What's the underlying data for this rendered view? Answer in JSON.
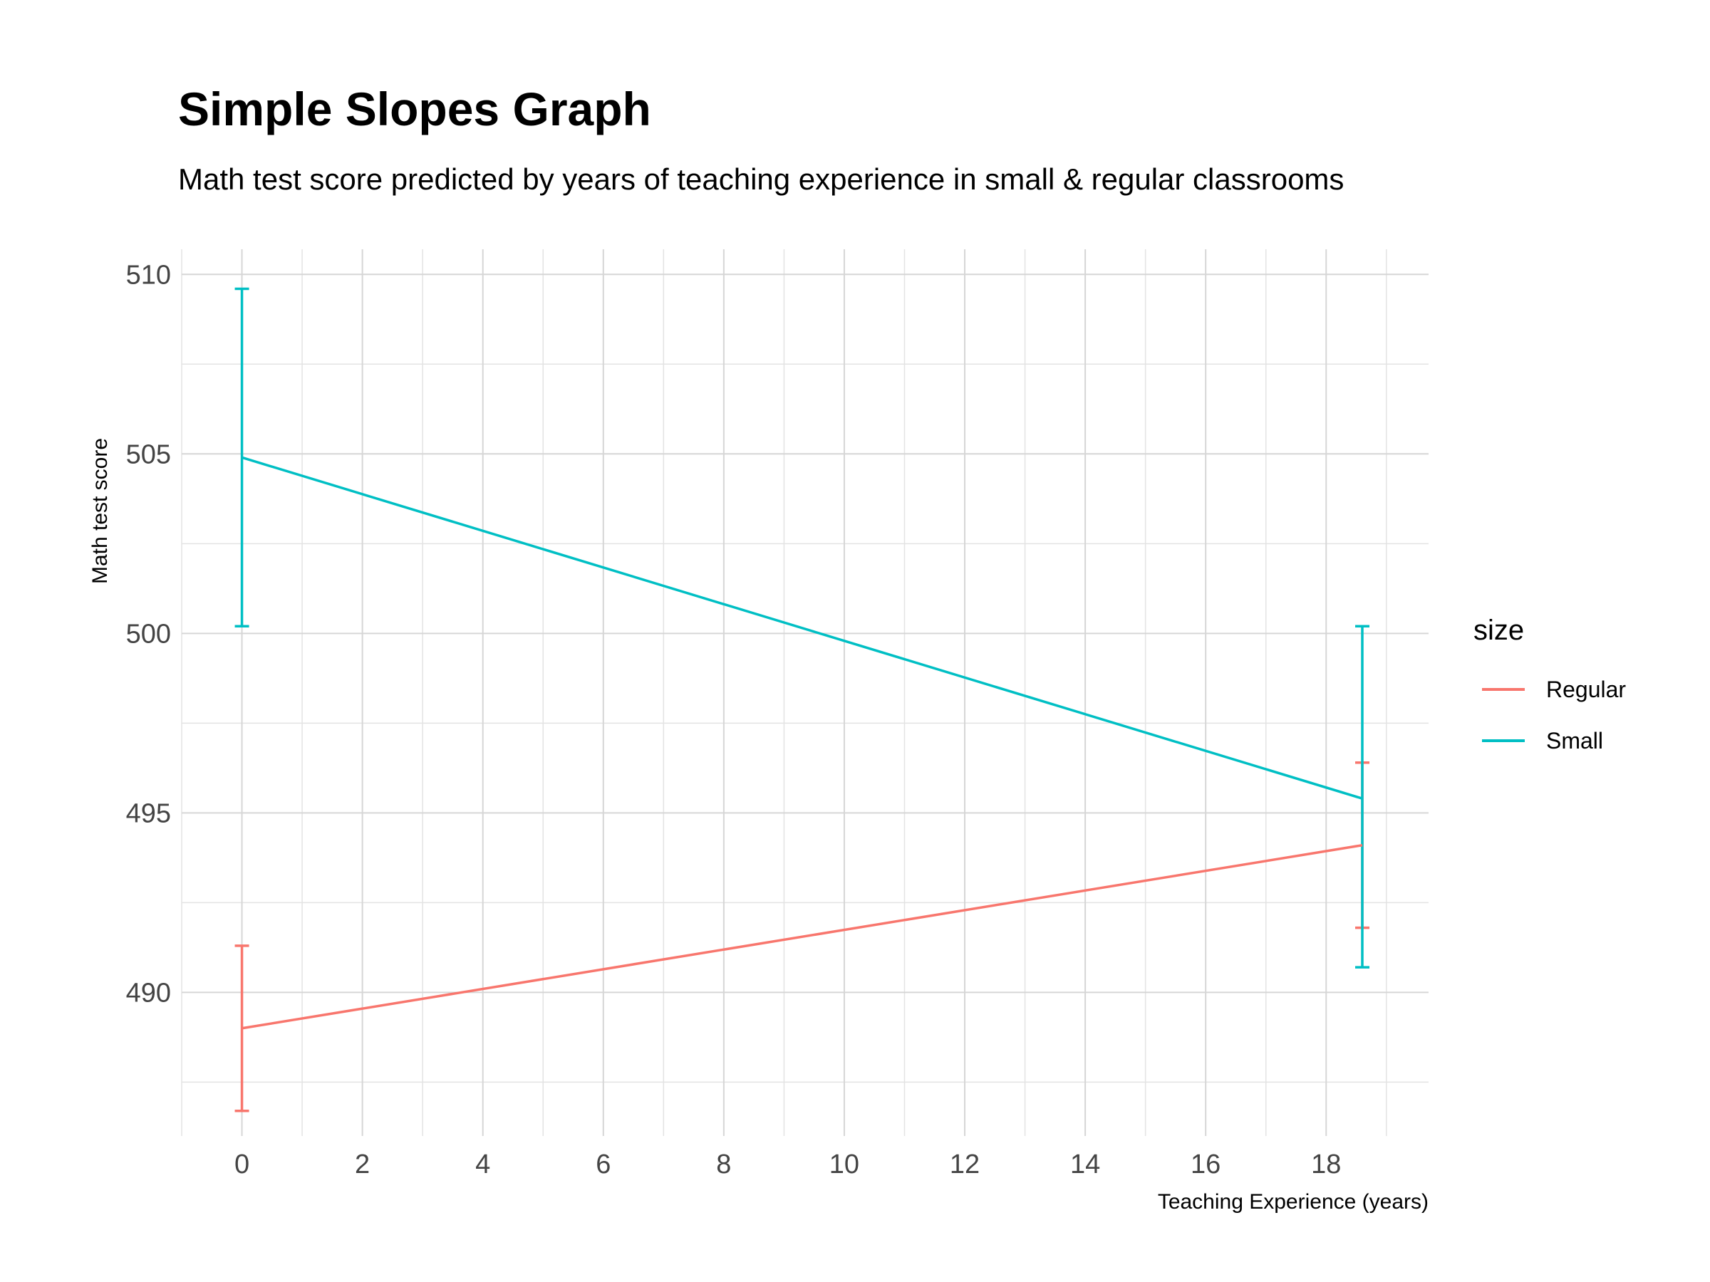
{
  "chart_data": {
    "type": "line",
    "title": "Simple Slopes Graph",
    "subtitle": "Math test score predicted by years of teaching experience in small & regular classrooms",
    "xlabel": "Teaching Experience (years)",
    "ylabel": "Math test score",
    "xlim": [
      -1,
      19.7
    ],
    "ylim": [
      486,
      510.7
    ],
    "x_ticks": [
      0,
      2,
      4,
      6,
      8,
      10,
      12,
      14,
      16,
      18
    ],
    "y_ticks": [
      490,
      495,
      500,
      505,
      510
    ],
    "grid": true,
    "legend": {
      "title": "size",
      "position": "right"
    },
    "series": [
      {
        "name": "Regular",
        "color": "#F8766D",
        "x": [
          0,
          18.6
        ],
        "y": [
          489.0,
          494.1
        ],
        "error_low": [
          486.7,
          491.8
        ],
        "error_high": [
          491.3,
          496.4
        ]
      },
      {
        "name": "Small",
        "color": "#00BFC4",
        "x": [
          0,
          18.6
        ],
        "y": [
          504.9,
          495.4
        ],
        "error_low": [
          500.2,
          490.7
        ],
        "error_high": [
          509.6,
          500.2
        ]
      }
    ]
  }
}
